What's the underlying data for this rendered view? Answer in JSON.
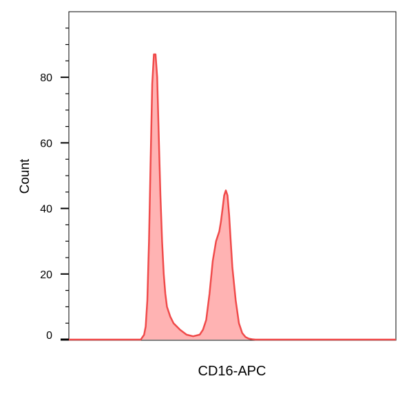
{
  "chart_data": {
    "type": "area",
    "title": "",
    "xlabel": "CD16-APC",
    "ylabel": "Count",
    "ylim": [
      0,
      98
    ],
    "yticks": [
      0,
      20,
      40,
      60,
      80
    ],
    "ytick_labels": [
      "0",
      "20",
      "40",
      "60",
      "80"
    ],
    "minor_tick_step": 5,
    "grid": false,
    "legend": "none",
    "xlim": [
      0,
      1
    ],
    "series": [
      {
        "color": "#f04a4a",
        "fill": "#ffb3b3",
        "x": [
          0.0,
          0.1,
          0.2,
          0.22,
          0.23,
          0.235,
          0.24,
          0.245,
          0.25,
          0.255,
          0.26,
          0.265,
          0.27,
          0.275,
          0.28,
          0.285,
          0.29,
          0.295,
          0.3,
          0.31,
          0.32,
          0.34,
          0.36,
          0.38,
          0.4,
          0.41,
          0.42,
          0.43,
          0.44,
          0.45,
          0.46,
          0.465,
          0.47,
          0.475,
          0.48,
          0.485,
          0.49,
          0.495,
          0.5,
          0.51,
          0.52,
          0.53,
          0.54,
          0.55,
          0.56,
          0.57,
          0.58,
          0.6,
          0.7,
          0.8,
          1.0
        ],
        "y": [
          0,
          0,
          0,
          0,
          1.5,
          4,
          12,
          30,
          55,
          78,
          87,
          87,
          80,
          62,
          44,
          30,
          20,
          14,
          10,
          7,
          5,
          3,
          1.5,
          1,
          1.5,
          3,
          6,
          14,
          24,
          30,
          33,
          36,
          40,
          44,
          45.5,
          44,
          38,
          30,
          22,
          12,
          5,
          2,
          0.8,
          0.3,
          0.1,
          0,
          0,
          0,
          0,
          0,
          0
        ]
      }
    ]
  }
}
